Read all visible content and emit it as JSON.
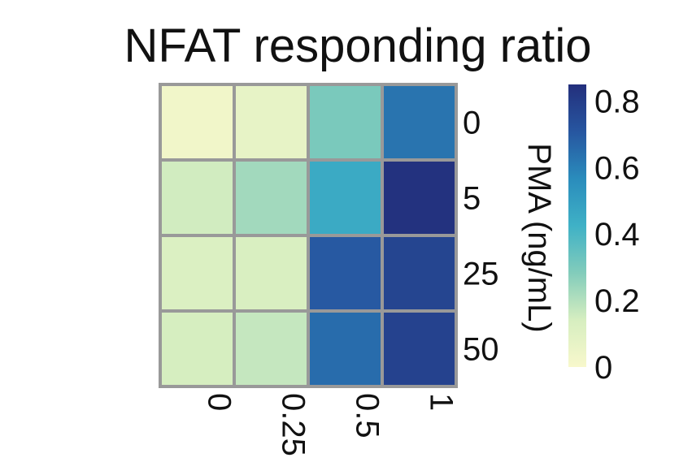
{
  "chart_data": {
    "type": "heatmap",
    "title": "NFAT responding ratio",
    "x_categories": [
      "0",
      "0.25",
      "0.5",
      "1"
    ],
    "y_categories": [
      "0",
      "5",
      "25",
      "50"
    ],
    "y_label": "PMA (ng/mL)",
    "x_label": "",
    "values": [
      [
        0.03,
        0.07,
        0.3,
        0.63
      ],
      [
        0.15,
        0.23,
        0.45,
        0.84
      ],
      [
        0.12,
        0.13,
        0.7,
        0.77
      ],
      [
        0.14,
        0.17,
        0.65,
        0.78
      ]
    ],
    "colorbar": {
      "min": 0,
      "max": 0.85,
      "ticks": [
        0,
        0.2,
        0.4,
        0.6,
        0.8
      ],
      "tick_labels": [
        "0",
        "0.2",
        "0.4",
        "0.6",
        "0.8"
      ],
      "colormap": [
        "#f8f8cc",
        "#d6eec0",
        "#82ccbb",
        "#3fb1c6",
        "#2a8cbc",
        "#2756a0",
        "#232f7c"
      ]
    },
    "grid_color": "#999999"
  }
}
